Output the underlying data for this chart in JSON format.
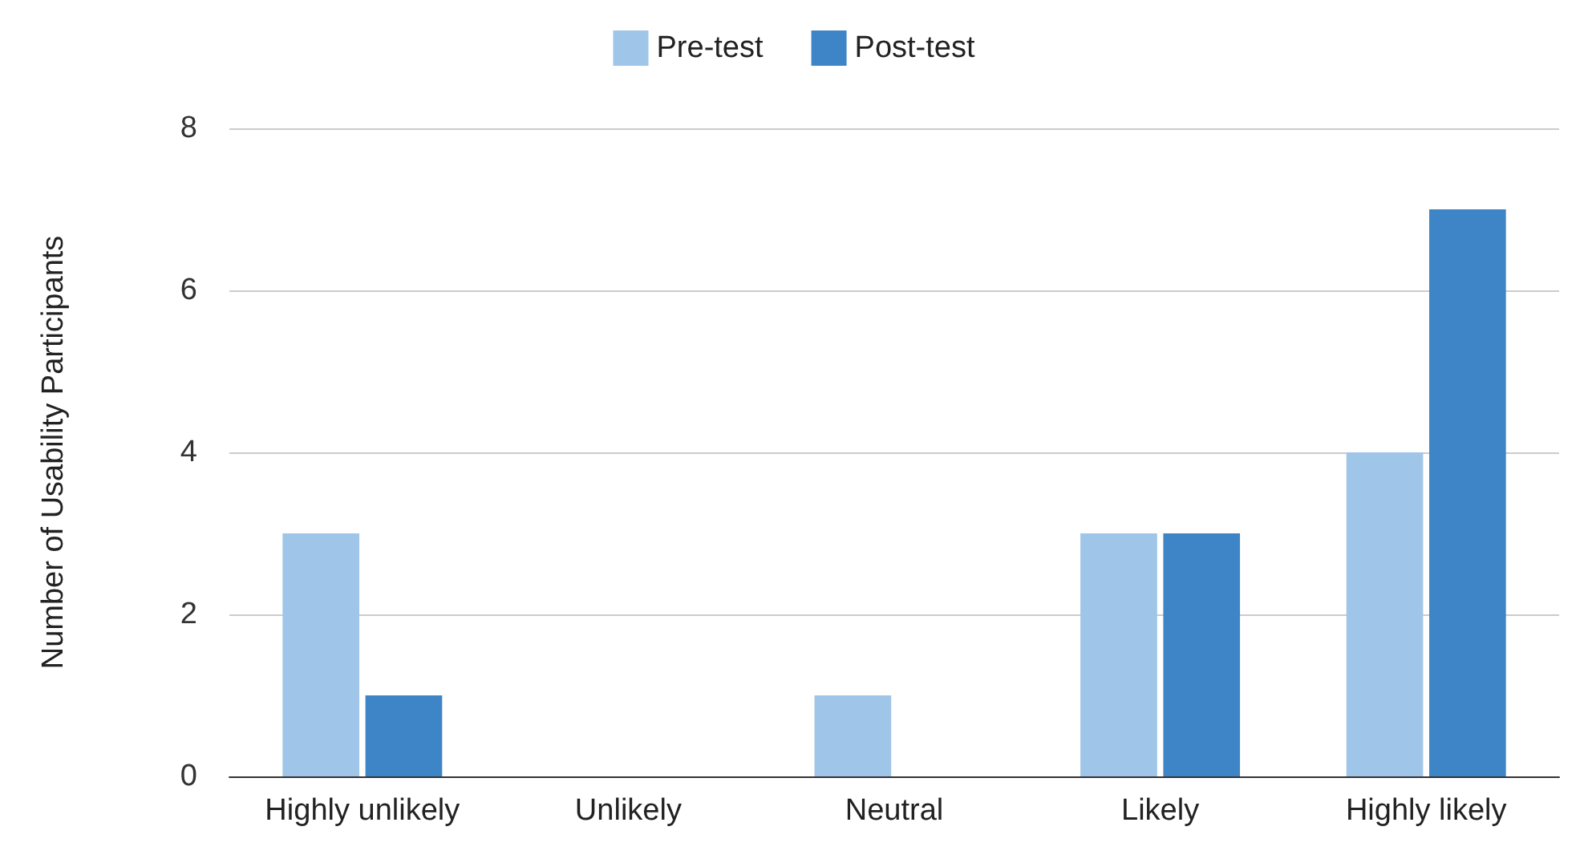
{
  "chart_data": {
    "type": "bar",
    "ylabel": "Number of Usability Participants",
    "categories": [
      "Highly unlikely",
      "Unlikely",
      "Neutral",
      "Likely",
      "Highly likely"
    ],
    "series": [
      {
        "name": "Pre-test",
        "color": "#9fc5e8",
        "values": [
          3,
          0,
          1,
          3,
          4
        ]
      },
      {
        "name": "Post-test",
        "color": "#3d85c6",
        "values": [
          1,
          0,
          0,
          3,
          7
        ]
      }
    ],
    "ylim": [
      0,
      8
    ],
    "yticks": [
      0,
      2,
      4,
      6,
      8
    ],
    "grid": "y",
    "legend": "top"
  }
}
